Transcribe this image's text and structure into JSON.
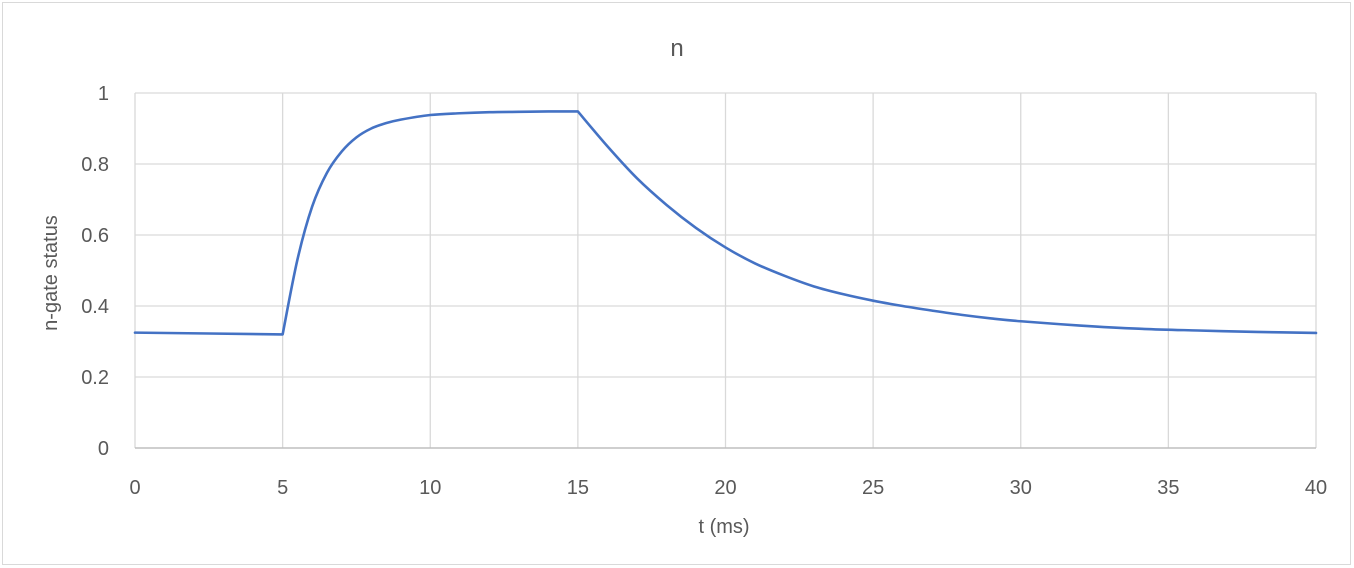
{
  "chart_data": {
    "type": "line",
    "title": "n",
    "xlabel": "t (ms)",
    "ylabel": "n-gate status",
    "xlim": [
      0,
      40
    ],
    "ylim": [
      0,
      1
    ],
    "x_ticks": [
      0,
      5,
      10,
      15,
      20,
      25,
      30,
      35,
      40
    ],
    "y_ticks": [
      0,
      0.2,
      0.4,
      0.6,
      0.8,
      1
    ],
    "y_tick_labels": [
      "0",
      "0.2",
      "0.4",
      "0.6",
      "0.8",
      "1"
    ],
    "grid": true,
    "legend": "none",
    "series": [
      {
        "color": "#4472c4",
        "x": [
          0,
          5,
          5.5,
          6,
          6.5,
          7,
          7.5,
          8,
          8.5,
          9,
          10,
          11,
          12,
          13,
          14,
          15,
          16,
          17,
          18,
          19,
          20,
          21,
          22,
          23,
          24,
          25,
          26,
          27,
          28,
          29,
          30,
          32,
          34,
          36,
          38,
          40
        ],
        "y": [
          0.325,
          0.32,
          0.53,
          0.68,
          0.775,
          0.835,
          0.875,
          0.9,
          0.915,
          0.925,
          0.938,
          0.943,
          0.946,
          0.947,
          0.948,
          0.948,
          0.85,
          0.76,
          0.685,
          0.62,
          0.565,
          0.52,
          0.485,
          0.455,
          0.433,
          0.415,
          0.4,
          0.387,
          0.375,
          0.365,
          0.357,
          0.345,
          0.336,
          0.331,
          0.327,
          0.324
        ]
      }
    ]
  }
}
